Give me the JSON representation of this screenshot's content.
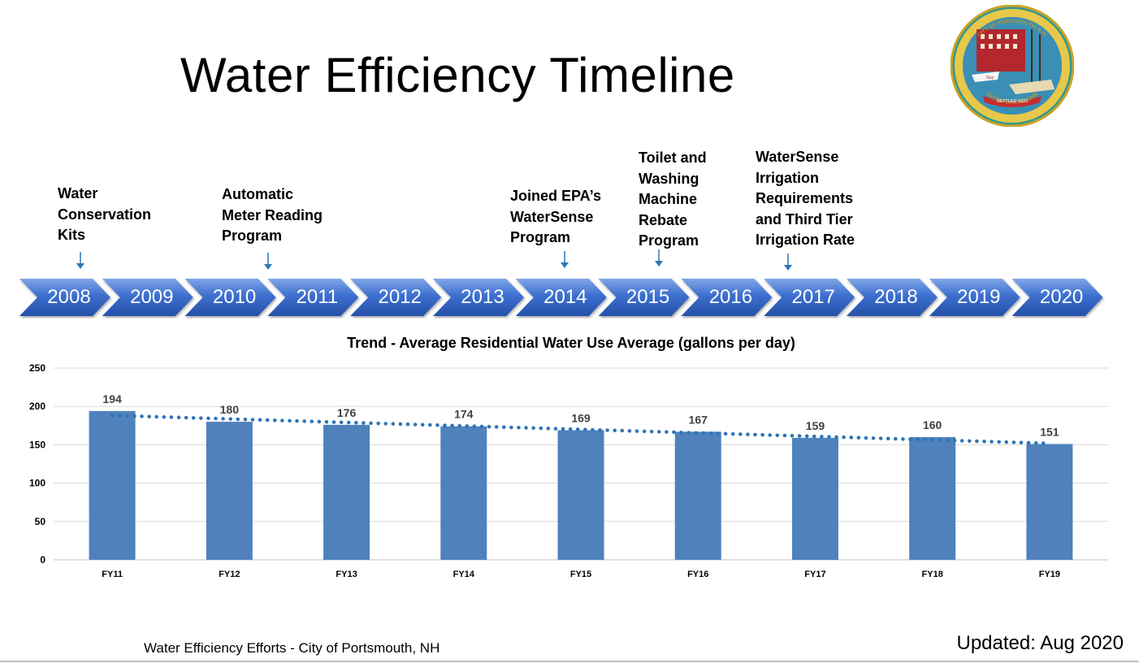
{
  "title": "Water Efficiency Timeline",
  "logo": {
    "ring_top": "CITY OF PORTSMOUTH, N.H.",
    "ring_bottom": "INCORPORATED 1849",
    "banner": "SETTLED 1623",
    "boat_name": "Bay"
  },
  "timeline": {
    "years": [
      "2008",
      "2009",
      "2010",
      "2011",
      "2012",
      "2013",
      "2014",
      "2015",
      "2016",
      "2017",
      "2018",
      "2019",
      "2020"
    ],
    "milestones": [
      {
        "lines": [
          "Water",
          "Conservation",
          "Kits"
        ]
      },
      {
        "lines": [
          "Automatic",
          "Meter Reading",
          "Program"
        ]
      },
      {
        "lines": [
          "Joined EPA’s",
          "WaterSense",
          "Program"
        ]
      },
      {
        "lines": [
          "Toilet and",
          "Washing",
          "Machine",
          "Rebate",
          "Program"
        ]
      },
      {
        "lines": [
          "WaterSense",
          "Irrigation",
          "Requirements",
          "and Third Tier",
          "Irrigation Rate"
        ]
      }
    ]
  },
  "chart_data": {
    "type": "bar",
    "title": "Trend - Average Residential Water Use Average (gallons per day)",
    "categories": [
      "FY11",
      "FY12",
      "FY13",
      "FY14",
      "FY15",
      "FY16",
      "FY17",
      "FY18",
      "FY19"
    ],
    "values": [
      194,
      180,
      176,
      174,
      169,
      167,
      159,
      160,
      151
    ],
    "ylim": [
      0,
      250
    ],
    "yticks": [
      0,
      50,
      100,
      150,
      200,
      250
    ],
    "trendline": "linear",
    "grid": true,
    "colors": {
      "bar": "#4f81bd",
      "trend": "#2e75b6",
      "label": "#404040"
    }
  },
  "footer": {
    "left": "Water Efficiency Efforts - City of Portsmouth, NH",
    "right": "Updated: Aug 2020"
  }
}
